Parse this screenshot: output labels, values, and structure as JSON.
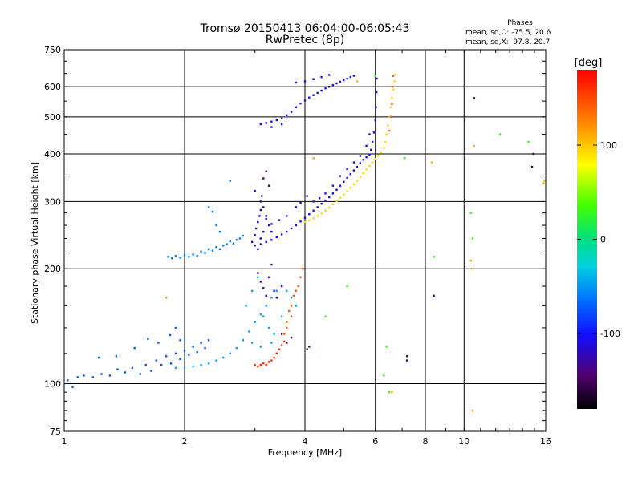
{
  "chart_data": {
    "type": "scatter",
    "title": "Tromsø 20150413 06:04:00-06:05:43",
    "subtitle": "RwPretec (8p)",
    "xlabel": "Frequency [MHz]",
    "ylabel": "Stationary phase Virtual Height [km]",
    "x_scale": "log",
    "y_scale": "log",
    "xlim": [
      1,
      16
    ],
    "ylim": [
      75,
      750
    ],
    "x_ticks": [
      1,
      2,
      4,
      6,
      8,
      10,
      16
    ],
    "y_ticks": [
      75,
      100,
      200,
      300,
      400,
      500,
      600,
      750
    ],
    "grid": true,
    "stats": {
      "heading": "Phases",
      "line_o": "mean, sd,O: -75.5, 20.6",
      "line_x": "mean, sd,X:  97.8, 20.7"
    },
    "colorbar": {
      "label": "[deg]",
      "range": [
        -180,
        180
      ],
      "ticks": [
        100,
        0,
        -100
      ]
    },
    "series": [
      {
        "phase_deg": -75.5,
        "points": [
          [
            1.02,
            102
          ],
          [
            1.05,
            98
          ],
          [
            1.08,
            104
          ],
          [
            1.12,
            105
          ],
          [
            1.18,
            104
          ],
          [
            1.24,
            106
          ],
          [
            1.3,
            105
          ],
          [
            1.36,
            109
          ],
          [
            1.42,
            107
          ],
          [
            1.48,
            110
          ],
          [
            1.55,
            106
          ],
          [
            1.6,
            112
          ],
          [
            1.65,
            108
          ],
          [
            1.7,
            115
          ],
          [
            1.75,
            112
          ],
          [
            1.8,
            118
          ],
          [
            1.85,
            113
          ],
          [
            1.9,
            120
          ],
          [
            1.95,
            116
          ],
          [
            2.0,
            122
          ],
          [
            2.05,
            119
          ],
          [
            2.1,
            125
          ],
          [
            2.15,
            121
          ],
          [
            2.2,
            128
          ],
          [
            2.25,
            124
          ],
          [
            2.3,
            130
          ],
          [
            1.22,
            117
          ],
          [
            1.35,
            118
          ],
          [
            1.5,
            124
          ],
          [
            1.62,
            131
          ],
          [
            1.72,
            128
          ],
          [
            1.84,
            134
          ],
          [
            1.9,
            140
          ],
          [
            1.95,
            130
          ]
        ]
      },
      {
        "phase_deg": -60,
        "points": [
          [
            1.82,
            215
          ],
          [
            1.86,
            213
          ],
          [
            1.9,
            216
          ],
          [
            1.95,
            214
          ],
          [
            2.0,
            217
          ],
          [
            2.05,
            215
          ],
          [
            2.1,
            218
          ],
          [
            2.15,
            216
          ],
          [
            2.2,
            222
          ],
          [
            2.25,
            220
          ],
          [
            2.3,
            225
          ],
          [
            2.35,
            223
          ],
          [
            2.4,
            228
          ],
          [
            2.45,
            225
          ],
          [
            2.5,
            230
          ],
          [
            2.55,
            232
          ],
          [
            2.6,
            236
          ],
          [
            2.65,
            233
          ],
          [
            2.7,
            238
          ],
          [
            2.75,
            240
          ],
          [
            2.8,
            244
          ],
          [
            2.35,
            282
          ],
          [
            2.3,
            290
          ],
          [
            2.4,
            260
          ],
          [
            2.45,
            250
          ],
          [
            2.6,
            340
          ]
        ]
      },
      {
        "phase_deg": -45,
        "points": [
          [
            1.9,
            110
          ],
          [
            2.0,
            110
          ],
          [
            2.1,
            111
          ],
          [
            2.2,
            112
          ],
          [
            2.3,
            113
          ],
          [
            2.4,
            115
          ],
          [
            2.5,
            117
          ],
          [
            2.6,
            120
          ],
          [
            2.7,
            124
          ],
          [
            2.8,
            130
          ],
          [
            2.9,
            137
          ],
          [
            3.0,
            145
          ],
          [
            3.1,
            152
          ],
          [
            3.2,
            160
          ],
          [
            3.3,
            168
          ],
          [
            3.4,
            175
          ],
          [
            3.5,
            180
          ],
          [
            3.6,
            175
          ],
          [
            3.7,
            168
          ],
          [
            3.8,
            160
          ],
          [
            2.85,
            160
          ],
          [
            2.95,
            175
          ],
          [
            3.05,
            190
          ],
          [
            3.15,
            150
          ],
          [
            3.25,
            140
          ],
          [
            3.35,
            135
          ],
          [
            2.95,
            128
          ],
          [
            3.1,
            125
          ],
          [
            3.3,
            128
          ],
          [
            3.5,
            150
          ]
        ]
      },
      {
        "phase_deg": -120,
        "points": [
          [
            2.95,
            235
          ],
          [
            3.0,
            245
          ],
          [
            3.02,
            255
          ],
          [
            3.05,
            265
          ],
          [
            3.08,
            275
          ],
          [
            3.1,
            285
          ],
          [
            3.1,
            300
          ],
          [
            3.12,
            310
          ],
          [
            3.15,
            290
          ],
          [
            3.2,
            270
          ],
          [
            3.25,
            260
          ],
          [
            3.3,
            250
          ],
          [
            3.0,
            230
          ],
          [
            3.05,
            225
          ],
          [
            3.1,
            240
          ],
          [
            3.15,
            250
          ],
          [
            3.2,
            275
          ],
          [
            3.05,
            195
          ],
          [
            3.1,
            185
          ],
          [
            3.15,
            178
          ],
          [
            3.2,
            170
          ],
          [
            3.25,
            190
          ],
          [
            3.3,
            205
          ],
          [
            3.35,
            175
          ],
          [
            3.4,
            168
          ],
          [
            3.5,
            180
          ],
          [
            3.0,
            320
          ]
        ]
      },
      {
        "phase_deg": -110,
        "points": [
          [
            3.1,
            232
          ],
          [
            3.2,
            235
          ],
          [
            3.3,
            238
          ],
          [
            3.4,
            242
          ],
          [
            3.5,
            246
          ],
          [
            3.6,
            250
          ],
          [
            3.7,
            255
          ],
          [
            3.8,
            260
          ],
          [
            3.9,
            266
          ],
          [
            4.0,
            272
          ],
          [
            4.1,
            278
          ],
          [
            4.2,
            284
          ],
          [
            4.3,
            290
          ],
          [
            4.4,
            296
          ],
          [
            4.5,
            302
          ],
          [
            4.6,
            308
          ],
          [
            4.7,
            315
          ],
          [
            4.8,
            322
          ],
          [
            4.9,
            330
          ],
          [
            5.0,
            338
          ],
          [
            5.1,
            346
          ],
          [
            5.2,
            354
          ],
          [
            5.3,
            362
          ],
          [
            5.4,
            370
          ],
          [
            5.5,
            378
          ],
          [
            5.6,
            386
          ],
          [
            5.7,
            392
          ],
          [
            5.8,
            398
          ],
          [
            5.85,
            410
          ],
          [
            5.9,
            430
          ],
          [
            5.95,
            455
          ],
          [
            6.0,
            490
          ],
          [
            6.02,
            530
          ],
          [
            6.04,
            580
          ],
          [
            6.05,
            630
          ],
          [
            3.3,
            262
          ],
          [
            3.45,
            268
          ],
          [
            3.6,
            275
          ],
          [
            3.8,
            290
          ],
          [
            3.9,
            298
          ],
          [
            4.05,
            310
          ],
          [
            4.2,
            300
          ],
          [
            4.35,
            306
          ],
          [
            4.5,
            315
          ],
          [
            4.7,
            330
          ],
          [
            4.9,
            350
          ],
          [
            5.1,
            365
          ],
          [
            5.3,
            380
          ],
          [
            5.5,
            395
          ],
          [
            5.7,
            420
          ],
          [
            5.8,
            450
          ]
        ]
      },
      {
        "phase_deg": -100,
        "points": [
          [
            3.1,
            478
          ],
          [
            3.2,
            482
          ],
          [
            3.3,
            486
          ],
          [
            3.4,
            490
          ],
          [
            3.5,
            495
          ],
          [
            3.6,
            505
          ],
          [
            3.7,
            515
          ],
          [
            3.8,
            530
          ],
          [
            3.9,
            542
          ],
          [
            4.0,
            552
          ],
          [
            4.1,
            562
          ],
          [
            4.2,
            570
          ],
          [
            4.3,
            578
          ],
          [
            4.4,
            586
          ],
          [
            4.5,
            594
          ],
          [
            4.6,
            600
          ],
          [
            4.7,
            606
          ],
          [
            4.8,
            612
          ],
          [
            4.9,
            618
          ],
          [
            5.0,
            624
          ],
          [
            5.1,
            630
          ],
          [
            5.2,
            636
          ],
          [
            5.3,
            641
          ],
          [
            3.8,
            615
          ],
          [
            4.0,
            620
          ],
          [
            4.2,
            628
          ],
          [
            4.4,
            636
          ],
          [
            4.6,
            644
          ],
          [
            3.3,
            470
          ],
          [
            3.5,
            478
          ]
        ]
      },
      {
        "phase_deg": 95,
        "points": [
          [
            4.0,
            265
          ],
          [
            4.1,
            268
          ],
          [
            4.2,
            271
          ],
          [
            4.3,
            275
          ],
          [
            4.4,
            279
          ],
          [
            4.5,
            284
          ],
          [
            4.6,
            289
          ],
          [
            4.7,
            295
          ],
          [
            4.8,
            301
          ],
          [
            4.9,
            307
          ],
          [
            5.0,
            313
          ],
          [
            5.1,
            319
          ],
          [
            5.2,
            326
          ],
          [
            5.3,
            333
          ],
          [
            5.4,
            340
          ],
          [
            5.5,
            348
          ],
          [
            5.6,
            356
          ],
          [
            5.7,
            364
          ],
          [
            5.8,
            372
          ],
          [
            5.9,
            380
          ],
          [
            6.0,
            388
          ],
          [
            6.1,
            396
          ],
          [
            6.2,
            404
          ],
          [
            6.3,
            414
          ],
          [
            6.35,
            430
          ],
          [
            6.4,
            450
          ],
          [
            6.45,
            475
          ],
          [
            6.5,
            500
          ],
          [
            6.55,
            530
          ],
          [
            6.6,
            560
          ],
          [
            6.65,
            590
          ],
          [
            6.7,
            620
          ],
          [
            6.72,
            645
          ]
        ]
      },
      {
        "phase_deg": 140,
        "points": [
          [
            3.55,
            135
          ],
          [
            3.6,
            145
          ],
          [
            3.65,
            155
          ],
          [
            3.7,
            160
          ],
          [
            3.75,
            170
          ],
          [
            3.8,
            175
          ],
          [
            3.85,
            180
          ],
          [
            3.9,
            190
          ],
          [
            3.95,
            200
          ],
          [
            3.7,
            150
          ],
          [
            3.6,
            140
          ],
          [
            6.5,
            460
          ],
          [
            6.55,
            500
          ],
          [
            6.6,
            540
          ],
          [
            6.62,
            600
          ],
          [
            6.65,
            640
          ]
        ]
      },
      {
        "phase_deg": 160,
        "points": [
          [
            3.0,
            112
          ],
          [
            3.05,
            111
          ],
          [
            3.1,
            112
          ],
          [
            3.15,
            113
          ],
          [
            3.2,
            112
          ],
          [
            3.25,
            114
          ],
          [
            3.3,
            115
          ],
          [
            3.35,
            117
          ],
          [
            3.4,
            120
          ],
          [
            3.45,
            123
          ],
          [
            3.5,
            126
          ],
          [
            3.55,
            129
          ]
        ]
      },
      {
        "phase_deg": -150,
        "points": [
          [
            3.15,
            345
          ],
          [
            3.2,
            360
          ],
          [
            3.25,
            330
          ],
          [
            3.5,
            135
          ],
          [
            3.6,
            128
          ],
          [
            3.7,
            132
          ],
          [
            4.05,
            123
          ],
          [
            4.1,
            125
          ],
          [
            7.2,
            115
          ],
          [
            7.2,
            118
          ],
          [
            8.4,
            170
          ],
          [
            10.6,
            560
          ],
          [
            14.8,
            370
          ],
          [
            14.9,
            400
          ]
        ]
      },
      {
        "phase_deg": 30,
        "points": [
          [
            4.5,
            150
          ],
          [
            5.1,
            180
          ],
          [
            6.0,
            640
          ],
          [
            6.3,
            105
          ],
          [
            6.5,
            95
          ],
          [
            6.4,
            125
          ],
          [
            7.1,
            390
          ],
          [
            8.4,
            215
          ],
          [
            10.4,
            280
          ],
          [
            10.5,
            240
          ],
          [
            12.3,
            450
          ],
          [
            14.5,
            430
          ]
        ]
      },
      {
        "phase_deg": 110,
        "points": [
          [
            1.8,
            168
          ],
          [
            4.2,
            390
          ],
          [
            5.4,
            620
          ],
          [
            6.6,
            95
          ],
          [
            8.3,
            380
          ],
          [
            10.4,
            210
          ],
          [
            10.5,
            200
          ],
          [
            10.5,
            85
          ],
          [
            10.6,
            420
          ],
          [
            15.8,
            335
          ],
          [
            15.9,
            340
          ]
        ]
      }
    ]
  }
}
